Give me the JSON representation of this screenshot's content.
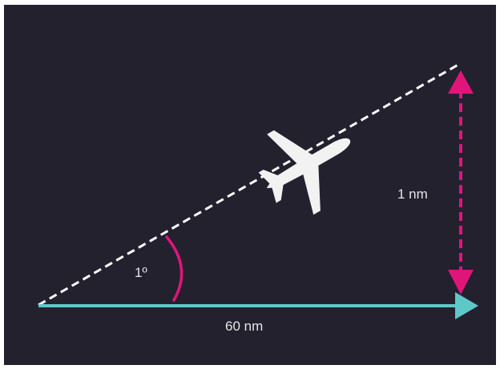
{
  "angle_label": "1º",
  "rise_label": "1 nm",
  "distance_label": "60 nm",
  "colors": {
    "background": "#24212f",
    "glide_path": "#ffffff",
    "horizontal_arrow": "#5ec8c8",
    "vertical_arrow": "#e0157a",
    "aircraft": "#f2f2f2"
  },
  "icons": {
    "aircraft": "airplane-icon"
  }
}
